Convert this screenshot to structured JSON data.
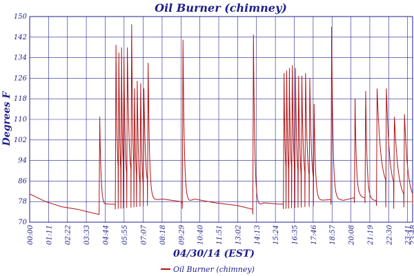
{
  "chart_data": {
    "type": "line",
    "title": "Oil Burner (chimney)",
    "xlabel": "04/30/14 (EST)",
    "ylabel": "Degrees F",
    "ylim": [
      70,
      150
    ],
    "yticks": [
      70,
      78,
      86,
      94,
      102,
      110,
      118,
      126,
      134,
      142,
      150
    ],
    "x_unit": "minutes since 00:00",
    "xlim": [
      0,
      1440
    ],
    "xticks": [
      "00:00",
      "01:11",
      "02:22",
      "03:33",
      "04:44",
      "05:55",
      "07:07",
      "08:18",
      "09:29",
      "10:40",
      "11:51",
      "13:02",
      "14:13",
      "15:24",
      "16:35",
      "17:46",
      "18:57",
      "20:08",
      "21:19",
      "22:30",
      "23:41",
      "23:48"
    ],
    "grid": true,
    "legend_position": "bottom-center",
    "series": [
      {
        "name": "Oil Burner (chimney)",
        "color": "#b01010",
        "baseline": [
          [
            0,
            81
          ],
          [
            60,
            78
          ],
          [
            120,
            76
          ],
          [
            180,
            75
          ],
          [
            240,
            73.5
          ],
          [
            262,
            73
          ],
          [
            290,
            75
          ],
          [
            320,
            75
          ],
          [
            500,
            77
          ],
          [
            570,
            76
          ],
          [
            575,
            75
          ],
          [
            620,
            77
          ],
          [
            700,
            75.5
          ],
          [
            780,
            74.5
          ],
          [
            840,
            73
          ],
          [
            880,
            75.5
          ],
          [
            940,
            75
          ],
          [
            1150,
            77
          ],
          [
            1180,
            76.5
          ],
          [
            1240,
            78
          ],
          [
            1295,
            76.5
          ],
          [
            1385,
            75
          ],
          [
            1440,
            77
          ]
        ],
        "cycles": [
          {
            "t": 262,
            "peak": 111,
            "min": 77
          },
          {
            "t": 323,
            "peak": 139,
            "min": 85
          },
          {
            "t": 334,
            "peak": 136,
            "min": 84
          },
          {
            "t": 344,
            "peak": 138,
            "min": 86
          },
          {
            "t": 353,
            "peak": 134,
            "min": 83
          },
          {
            "t": 366,
            "peak": 138,
            "min": 85
          },
          {
            "t": 382,
            "peak": 147,
            "min": 85
          },
          {
            "t": 393,
            "peak": 122,
            "min": 83
          },
          {
            "t": 403,
            "peak": 125,
            "min": 80
          },
          {
            "t": 416,
            "peak": 124,
            "min": 80
          },
          {
            "t": 428,
            "peak": 122,
            "min": 82
          },
          {
            "t": 444,
            "peak": 132,
            "min": 78
          },
          {
            "t": 575,
            "peak": 141,
            "min": 83
          },
          {
            "t": 840,
            "peak": 143,
            "min": 85
          },
          {
            "t": 955,
            "peak": 128,
            "min": 86
          },
          {
            "t": 965,
            "peak": 129,
            "min": 85
          },
          {
            "t": 975,
            "peak": 130,
            "min": 86
          },
          {
            "t": 986,
            "peak": 131,
            "min": 85
          },
          {
            "t": 998,
            "peak": 130,
            "min": 85
          },
          {
            "t": 1010,
            "peak": 127,
            "min": 84
          },
          {
            "t": 1022,
            "peak": 127,
            "min": 85
          },
          {
            "t": 1036,
            "peak": 128,
            "min": 84
          },
          {
            "t": 1052,
            "peak": 126,
            "min": 83
          },
          {
            "t": 1068,
            "peak": 116,
            "min": 80
          },
          {
            "t": 1134,
            "peak": 146,
            "min": 92
          },
          {
            "t": 1222,
            "peak": 118,
            "min": 84
          },
          {
            "t": 1262,
            "peak": 121,
            "min": 83
          },
          {
            "t": 1305,
            "peak": 122,
            "min": 83
          },
          {
            "t": 1340,
            "peak": 122,
            "min": 82
          },
          {
            "t": 1370,
            "peak": 111,
            "min": 78
          },
          {
            "t": 1408,
            "peak": 112,
            "min": 78
          }
        ]
      }
    ]
  }
}
